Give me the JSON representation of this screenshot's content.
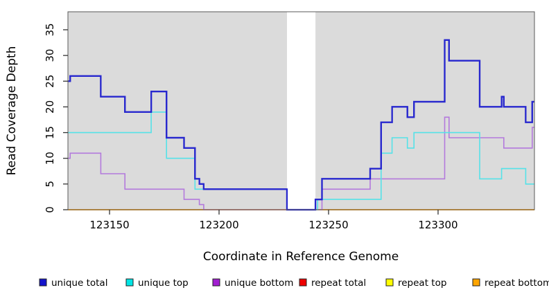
{
  "figure": {
    "background": "#ffffff",
    "plot_background": "#dbdbdb",
    "border_color": "#5a5a5a",
    "tick_color": "#333333"
  },
  "chart_data": {
    "type": "line",
    "subtype": "step",
    "title": "",
    "xlabel": "Coordinate in Reference Genome",
    "ylabel": "Read Coverage Depth",
    "xlim": [
      123131,
      123344
    ],
    "ylim": [
      0,
      35
    ],
    "x_ticks": [
      123150,
      123200,
      123250,
      123300
    ],
    "y_ticks": [
      0,
      5,
      10,
      15,
      20,
      25,
      30,
      35
    ],
    "grid": false,
    "legend_position": "bottom",
    "masked_region": {
      "start": 123231,
      "end": 123244,
      "color": "#ffffff"
    },
    "series": [
      {
        "name": "unique total",
        "color": "#2727ce",
        "legend_color": "#1414cc",
        "width": 2.2,
        "steps": [
          [
            123131,
            25
          ],
          [
            123132,
            26
          ],
          [
            123146,
            22
          ],
          [
            123157,
            19
          ],
          [
            123169,
            23
          ],
          [
            123176,
            14
          ],
          [
            123184,
            12
          ],
          [
            123189,
            6
          ],
          [
            123191,
            5
          ],
          [
            123193,
            4
          ],
          [
            123231,
            0
          ],
          [
            123244,
            2
          ],
          [
            123247,
            6
          ],
          [
            123269,
            8
          ],
          [
            123274,
            17
          ],
          [
            123279,
            20
          ],
          [
            123286,
            18
          ],
          [
            123289,
            21
          ],
          [
            123303,
            33
          ],
          [
            123305,
            29
          ],
          [
            123319,
            20
          ],
          [
            123329,
            22
          ],
          [
            123330,
            20
          ],
          [
            123340,
            17
          ],
          [
            123343,
            21
          ]
        ]
      },
      {
        "name": "unique top",
        "color": "#55e2e8",
        "legend_color": "#00e5e5",
        "width": 1.6,
        "steps": [
          [
            123131,
            15
          ],
          [
            123169,
            19
          ],
          [
            123176,
            10
          ],
          [
            123189,
            4
          ],
          [
            123231,
            0
          ],
          [
            123245,
            2
          ],
          [
            123274,
            11
          ],
          [
            123279,
            14
          ],
          [
            123286,
            12
          ],
          [
            123289,
            15
          ],
          [
            123319,
            6
          ],
          [
            123329,
            8
          ],
          [
            123340,
            5
          ]
        ]
      },
      {
        "name": "unique bottom",
        "color": "#b379dc",
        "legend_color": "#a21ed1",
        "width": 1.6,
        "steps": [
          [
            123131,
            10
          ],
          [
            123132,
            11
          ],
          [
            123146,
            7
          ],
          [
            123157,
            4
          ],
          [
            123184,
            2
          ],
          [
            123191,
            1
          ],
          [
            123193,
            0
          ],
          [
            123247,
            4
          ],
          [
            123269,
            6
          ],
          [
            123303,
            18
          ],
          [
            123305,
            14
          ],
          [
            123330,
            12
          ],
          [
            123343,
            16
          ]
        ]
      },
      {
        "name": "repeat total",
        "color": "#d40000",
        "legend_color": "#ee0000",
        "width": 1.6,
        "steps": [
          [
            123131,
            0
          ]
        ]
      },
      {
        "name": "repeat top",
        "color": "#ffff42",
        "legend_color": "#ffff00",
        "width": 1.6,
        "steps": [
          [
            123131,
            0
          ]
        ]
      },
      {
        "name": "repeat bottom",
        "color": "#ffa51e",
        "legend_color": "#ffa500",
        "width": 1.8,
        "steps": [
          [
            123131,
            0
          ]
        ]
      }
    ]
  }
}
